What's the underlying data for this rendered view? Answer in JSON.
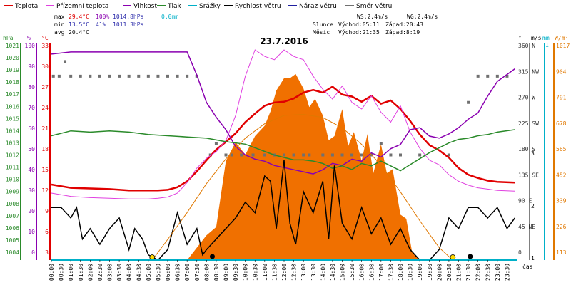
{
  "legend": [
    {
      "label": "Teplota",
      "color": "#e00000"
    },
    {
      "label": "Přízemní teplota",
      "color": "#e040e0"
    },
    {
      "label": "Vlhkost",
      "color": "#8a00b0"
    },
    {
      "label": "Tlak",
      "color": "#2a8a2a"
    },
    {
      "label": "Srážky",
      "color": "#00b0c8"
    },
    {
      "label": "Rychlost větru",
      "color": "#000000"
    },
    {
      "label": "Náraz větru",
      "color": "#2020a0"
    },
    {
      "label": "Směr větru",
      "color": "#707070"
    }
  ],
  "stats": {
    "max": {
      "label": "max",
      "temp": "29.4°C",
      "hum": "100%",
      "press": "1014.8hPa",
      "rain": "0.0mm"
    },
    "min": {
      "label": "min",
      "temp": "13.5°C",
      "hum": "41%",
      "press": "1011.3hPa"
    },
    "avg": {
      "label": "avg",
      "temp": "20.4°C"
    }
  },
  "wind_info": {
    "ws": "WS:2.4m/s",
    "wg": "WG:2.4m/s"
  },
  "sun": {
    "label": "Slunce",
    "rise": "Východ:05:11",
    "set": "Západ:20:43"
  },
  "moon": {
    "label": "Měsíc",
    "rise": "Východ:21:35",
    "set": "Západ:8:19"
  },
  "axis_units": {
    "hpa": "hPa",
    "pct": "%",
    "degc": "°C",
    "deg": "°",
    "ms": "m/s",
    "mm": "mm",
    "wm2": "W/m²",
    "time": "čas"
  },
  "chart_data": {
    "type": "line",
    "title": "23.7.2016",
    "x_ticks": [
      "00:00",
      "00:30",
      "01:00",
      "01:30",
      "02:00",
      "02:30",
      "03:00",
      "03:30",
      "04:00",
      "04:30",
      "05:00",
      "05:30",
      "06:00",
      "06:30",
      "07:00",
      "07:30",
      "08:00",
      "08:30",
      "09:00",
      "09:30",
      "10:00",
      "10:30",
      "11:00",
      "11:30",
      "12:00",
      "12:30",
      "13:00",
      "13:30",
      "14:00",
      "14:30",
      "15:00",
      "15:30",
      "16:00",
      "16:30",
      "17:00",
      "17:30",
      "18:00",
      "18:30",
      "19:00",
      "19:30",
      "20:00",
      "20:30",
      "21:00",
      "21:30",
      "22:00",
      "22:30",
      "23:00",
      "23:30"
    ],
    "axes": {
      "pressure_hpa": {
        "range": [
          1004,
          1022
        ],
        "ticks": [
          "1021",
          "1020",
          "1019",
          "1018",
          "1017",
          "1016",
          "1015",
          "1014",
          "1013",
          "1012",
          "1011",
          "1010",
          "1009",
          "1008",
          "1007",
          "1006",
          "1005",
          "1004"
        ]
      },
      "humidity_pct": {
        "range": [
          0,
          100
        ],
        "ticks": [
          "100",
          "90",
          "80",
          "70",
          "60",
          "50",
          "40",
          "30",
          "20",
          "10",
          "0"
        ]
      },
      "temperature_c": {
        "range": [
          3,
          35
        ],
        "ticks": [
          "33",
          "30",
          "27",
          "24",
          "21",
          "18",
          "15",
          "12",
          "9",
          "6",
          "3"
        ]
      },
      "wind_dir_deg": {
        "ticks": [
          "360 N",
          "315 NW",
          "270 W",
          "225 SW",
          "180 S",
          "135 SE",
          "90 E",
          "45 NE",
          "0"
        ]
      },
      "wind_ms": {
        "ticks": [
          "3",
          "2",
          "1"
        ]
      },
      "rain_mm": {
        "ticks": [
          "1"
        ]
      },
      "radiation_wm2": {
        "ticks": [
          "1017",
          "904",
          "791",
          "678",
          "565",
          "452",
          "339",
          "226",
          "113"
        ]
      }
    },
    "series": [
      {
        "name": "Teplota",
        "color": "#e00000",
        "x": [
          0,
          1,
          2,
          3,
          4,
          5,
          5.5,
          6,
          6.5,
          7,
          7.5,
          8,
          8.5,
          9,
          9.5,
          10,
          10.5,
          11,
          11.5,
          12,
          12.5,
          13,
          13.5,
          14,
          14.5,
          15,
          15.5,
          16,
          16.5,
          17,
          17.5,
          18,
          18.5,
          19,
          19.5,
          20,
          20.5,
          21,
          21.5,
          22,
          22.5,
          23,
          23.9
        ],
        "y": [
          14.5,
          14.0,
          13.9,
          13.8,
          13.6,
          13.6,
          13.6,
          13.7,
          14.1,
          15.0,
          16.5,
          18.2,
          19.8,
          21.0,
          22.3,
          24.0,
          25.3,
          26.5,
          27.0,
          27.1,
          27.6,
          28.5,
          28.9,
          28.5,
          29.4,
          28.2,
          27.9,
          27.1,
          28.0,
          26.8,
          27.3,
          26.0,
          24.2,
          22.1,
          20.5,
          19.7,
          18.6,
          17.0,
          16.0,
          15.5,
          15.1,
          14.9,
          14.8
        ]
      },
      {
        "name": "Přízemní teplota",
        "color": "#e040e0",
        "x": [
          0,
          1,
          2,
          3,
          4,
          5,
          5.5,
          6,
          6.5,
          7,
          7.5,
          8,
          8.5,
          9,
          9.5,
          10,
          10.5,
          11,
          11.5,
          12,
          12.5,
          13,
          13.5,
          14,
          14.5,
          15,
          15.5,
          16,
          16.5,
          17,
          17.5,
          18,
          18.5,
          19,
          19.5,
          20,
          20.5,
          21,
          21.5,
          22,
          22.5,
          23,
          23.9
        ],
        "y": [
          13.2,
          12.7,
          12.5,
          12.4,
          12.3,
          12.3,
          12.4,
          12.6,
          13.2,
          14.8,
          17.0,
          18.5,
          19.5,
          21.2,
          25.0,
          31.0,
          35.0,
          34.0,
          33.5,
          35.0,
          34.0,
          33.5,
          31.0,
          29.0,
          27.5,
          29.5,
          27.0,
          26.0,
          28.0,
          25.5,
          24.0,
          26.5,
          22.5,
          20.0,
          18.2,
          17.5,
          16.0,
          15.0,
          14.4,
          14.0,
          13.8,
          13.6,
          13.5
        ]
      },
      {
        "name": "Vlhkost",
        "color": "#8a00b0",
        "x": [
          0,
          1,
          2,
          3,
          4,
          5,
          5.5,
          6,
          7,
          7.5,
          8,
          8.5,
          9,
          9.5,
          10,
          10.5,
          11,
          11.5,
          12,
          12.5,
          13,
          13.5,
          14,
          14.5,
          15,
          15.5,
          16,
          16.5,
          17,
          17.5,
          18,
          18.5,
          19,
          19.5,
          20,
          20.5,
          21,
          21.5,
          22,
          22.5,
          23,
          23.9
        ],
        "y": [
          98,
          99,
          99,
          99,
          99,
          99,
          99,
          99,
          99,
          88,
          75,
          68,
          62,
          54,
          50,
          48,
          47,
          45,
          44,
          43,
          42,
          41,
          43,
          46,
          45,
          48,
          47,
          51,
          49,
          53,
          55,
          62,
          63,
          59,
          58,
          60,
          63,
          67,
          70,
          78,
          85,
          91
        ]
      },
      {
        "name": "Tlak",
        "color": "#2a8a2a",
        "x": [
          0,
          1,
          2,
          3,
          4,
          5,
          6,
          7,
          8,
          9,
          10,
          10.5,
          11,
          11.5,
          12,
          12.5,
          13,
          13.5,
          14,
          14.5,
          15,
          15.5,
          16,
          16.5,
          17,
          17.5,
          18,
          18.5,
          19,
          19.5,
          20,
          20.5,
          21,
          21.5,
          22,
          22.5,
          23,
          23.9
        ],
        "y": [
          1014.3,
          1014.7,
          1014.6,
          1014.7,
          1014.6,
          1014.4,
          1014.3,
          1014.2,
          1014.1,
          1013.8,
          1013.6,
          1013.3,
          1013.0,
          1012.7,
          1012.5,
          1012.3,
          1012.3,
          1012.2,
          1012.0,
          1011.6,
          1011.8,
          1011.5,
          1012.0,
          1011.8,
          1012.2,
          1011.8,
          1011.4,
          1011.9,
          1012.4,
          1012.9,
          1013.3,
          1013.7,
          1014.0,
          1014.1,
          1014.3,
          1014.4,
          1014.6,
          1014.8
        ]
      },
      {
        "name": "Rychlost větru",
        "color": "#000000",
        "x": [
          0,
          0.5,
          1,
          1.3,
          1.6,
          2,
          2.5,
          3,
          3.5,
          4,
          4.3,
          4.7,
          5,
          5.5,
          6,
          6.5,
          7,
          7.5,
          7.8,
          8,
          8.5,
          9,
          9.5,
          10,
          10.5,
          11,
          11.3,
          11.6,
          12,
          12.3,
          12.6,
          13,
          13.5,
          14,
          14.3,
          14.6,
          15,
          15.5,
          16,
          16.5,
          17,
          17.5,
          18,
          18.5,
          19,
          19.5,
          20,
          20.5,
          21,
          21.5,
          22,
          22.5,
          23,
          23.5,
          23.9
        ],
        "y": [
          1.0,
          1.0,
          0.8,
          1.0,
          0.4,
          0.6,
          0.3,
          0.6,
          0.8,
          0.2,
          0.6,
          0.4,
          0.1,
          0.0,
          0.2,
          0.9,
          0.3,
          0.6,
          0.1,
          0.2,
          0.4,
          0.6,
          0.8,
          1.1,
          0.9,
          1.6,
          1.5,
          0.6,
          1.9,
          0.7,
          0.3,
          1.3,
          0.9,
          1.5,
          0.4,
          1.8,
          0.7,
          0.4,
          1.0,
          0.5,
          0.8,
          0.3,
          0.6,
          0.2,
          0.0,
          0.0,
          0.2,
          0.8,
          0.6,
          1.0,
          1.0,
          0.8,
          1.0,
          0.6,
          0.8
        ]
      },
      {
        "name": "Náraz větru",
        "color": "#2020a0",
        "x": [
          0,
          23.9
        ],
        "y": [
          0,
          0
        ]
      },
      {
        "name": "Slunce",
        "color": "#e07800",
        "x": [
          5.2,
          6,
          7,
          8,
          9,
          10,
          11,
          12,
          13,
          14,
          15,
          16,
          17,
          18,
          19,
          20,
          20.7
        ],
        "y": [
          0,
          100,
          230,
          370,
          490,
          590,
          660,
          700,
          705,
          690,
          640,
          560,
          460,
          330,
          190,
          60,
          0
        ]
      }
    ],
    "radiation_area": {
      "color": "#f07000",
      "x": [
        7.0,
        8.0,
        8.5,
        9.0,
        9.5,
        10.0,
        10.5,
        11.0,
        11.3,
        11.6,
        12.0,
        12.3,
        12.6,
        13.0,
        13.3,
        13.6,
        14.0,
        14.3,
        14.6,
        15.0,
        15.3,
        15.6,
        16.0,
        16.3,
        16.6,
        17.0,
        17.3,
        17.6,
        18.0,
        18.3,
        18.6,
        19.0
      ],
      "y": [
        0,
        120,
        160,
        480,
        570,
        510,
        600,
        650,
        720,
        820,
        880,
        880,
        900,
        830,
        740,
        780,
        700,
        580,
        600,
        730,
        550,
        620,
        480,
        610,
        420,
        560,
        420,
        440,
        220,
        200,
        40,
        0
      ]
    },
    "wind_direction_points": {
      "x": [
        0.1,
        0.4,
        0.7,
        1.0,
        1.5,
        2.0,
        2.5,
        3.0,
        3.5,
        4.0,
        4.5,
        5.0,
        5.5,
        6.0,
        6.5,
        7.0,
        7.5,
        8.2,
        8.5,
        9.0,
        9.3,
        9.8,
        10.4,
        11.0,
        11.5,
        12.0,
        12.5,
        13.0,
        13.3,
        14.0,
        14.5,
        15.0,
        15.5,
        16.0,
        16.5,
        17.0,
        17.5,
        18.0,
        19.0,
        20.5,
        21.5,
        22.0,
        22.5,
        23.0,
        23.5
      ],
      "y": [
        315,
        315,
        340,
        315,
        315,
        315,
        315,
        315,
        315,
        315,
        315,
        315,
        315,
        315,
        315,
        315,
        315,
        180,
        200,
        180,
        180,
        180,
        180,
        180,
        180,
        180,
        180,
        180,
        180,
        180,
        180,
        180,
        180,
        180,
        180,
        200,
        180,
        180,
        180,
        180,
        270,
        315,
        315,
        315,
        315
      ]
    }
  }
}
